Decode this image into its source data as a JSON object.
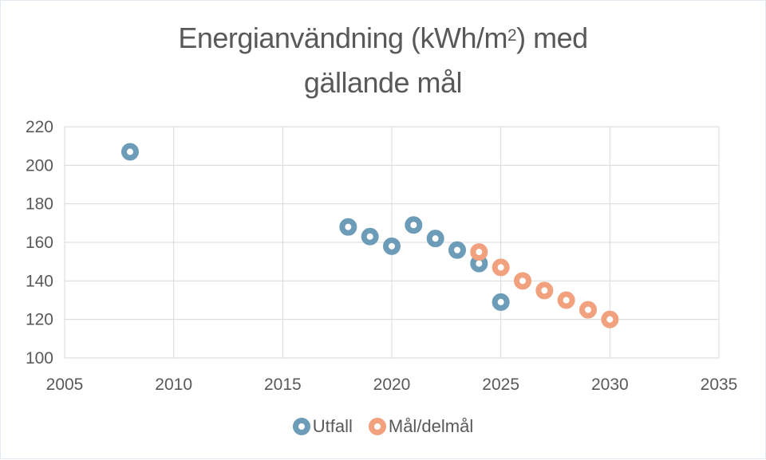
{
  "title": {
    "line1_pre": "Energianvändning (kWh/m",
    "line1_sup": "2",
    "line1_post": ") med",
    "line2": "gällande mål"
  },
  "chart_data": {
    "type": "scatter",
    "title": "Energianvändning (kWh/m2) med gällande mål",
    "xlabel": "",
    "ylabel": "",
    "grid": true,
    "legend_position": "bottom",
    "marker_style": "donut",
    "x_axis": {
      "min": 2005,
      "max": 2035,
      "step": 5,
      "ticks": [
        2005,
        2010,
        2015,
        2020,
        2025,
        2030,
        2035
      ]
    },
    "y_axis": {
      "min": 100,
      "max": 220,
      "step": 20,
      "ticks": [
        100,
        120,
        140,
        160,
        180,
        200,
        220
      ]
    },
    "series": [
      {
        "id": "utfall",
        "name": "Utfall",
        "color": "#6d9cb8",
        "points": [
          {
            "x": 2008,
            "y": 207
          },
          {
            "x": 2018,
            "y": 168
          },
          {
            "x": 2019,
            "y": 163
          },
          {
            "x": 2020,
            "y": 158
          },
          {
            "x": 2021,
            "y": 169
          },
          {
            "x": 2022,
            "y": 162
          },
          {
            "x": 2023,
            "y": 156
          },
          {
            "x": 2024,
            "y": 149
          },
          {
            "x": 2025,
            "y": 129
          }
        ]
      },
      {
        "id": "mal-delmal",
        "name": "Mål/delmål",
        "color": "#f1a17e",
        "points": [
          {
            "x": 2024,
            "y": 155
          },
          {
            "x": 2025,
            "y": 147
          },
          {
            "x": 2026,
            "y": 140
          },
          {
            "x": 2027,
            "y": 135
          },
          {
            "x": 2028,
            "y": 130
          },
          {
            "x": 2029,
            "y": 125
          },
          {
            "x": 2030,
            "y": 120
          }
        ]
      }
    ]
  },
  "legend": {
    "items": [
      {
        "label": "Utfall",
        "color": "#6d9cb8"
      },
      {
        "label": "Mål/delmål",
        "color": "#f1a17e"
      }
    ]
  },
  "colors": {
    "background": "#ffffff",
    "grid": "#d9d9d9",
    "plot_border": "#d9d9d9",
    "axis_text": "#595959",
    "title_text": "#595959"
  }
}
